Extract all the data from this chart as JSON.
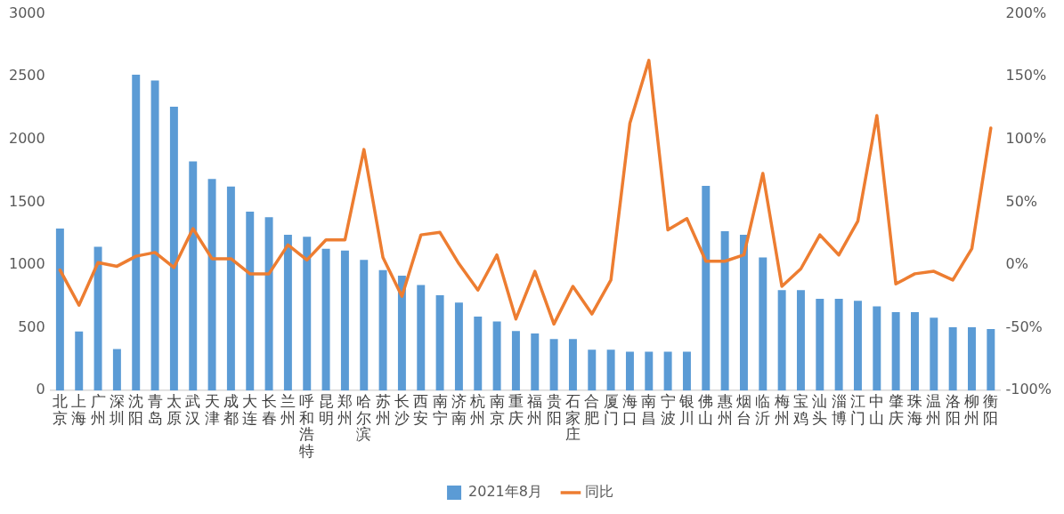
{
  "chart_data": {
    "type": "bar",
    "categories": [
      "北京",
      "上海",
      "广州",
      "深圳",
      "沈阳",
      "青岛",
      "太原",
      "武汉",
      "天津",
      "成都",
      "大连",
      "长春",
      "兰州",
      "呼和浩特",
      "昆明",
      "郑州",
      "哈尔滨",
      "苏州",
      "长沙",
      "西安",
      "南宁",
      "济南",
      "杭州",
      "南京",
      "重庆",
      "福州",
      "贵阳",
      "石家庄",
      "合肥",
      "厦门",
      "海口",
      "南昌",
      "宁波",
      "银川",
      "佛山",
      "惠州",
      "烟台",
      "临沂",
      "梅州",
      "宝鸡",
      "汕头",
      "淄博",
      "江门",
      "中山",
      "肇庆",
      "珠海",
      "温州",
      "洛阳",
      "柳州",
      "衡阳"
    ],
    "series": [
      {
        "name": "2021年8月",
        "color": "#5b9bd5",
        "values": [
          1290,
          470,
          1145,
          330,
          2515,
          2470,
          2260,
          1825,
          1685,
          1625,
          1425,
          1380,
          1240,
          1225,
          1130,
          1115,
          1040,
          960,
          915,
          840,
          760,
          700,
          590,
          550,
          475,
          455,
          410,
          410,
          325,
          325,
          310,
          310,
          310,
          310,
          1630,
          1270,
          1240,
          1060,
          800,
          800,
          730,
          730,
          715,
          670,
          625,
          625,
          580,
          505,
          505,
          490
        ]
      },
      {
        "name": "同比",
        "type": "line",
        "axis": "y2",
        "color": "#ed7d31",
        "values": [
          -4,
          -32,
          2,
          -1,
          7,
          10,
          -2,
          29,
          5,
          5,
          -7,
          -7,
          16,
          4,
          20,
          20,
          92,
          6,
          -25,
          24,
          26,
          1,
          -20,
          8,
          -43,
          -5,
          -47,
          -17,
          -39,
          -12,
          113,
          163,
          28,
          37,
          3,
          3,
          8,
          73,
          -17,
          -3,
          24,
          8,
          35,
          119,
          -15,
          -7,
          -5,
          -12,
          13,
          109
        ]
      }
    ],
    "ylim": [
      0,
      3000
    ],
    "yticks": [
      0,
      500,
      1000,
      1500,
      2000,
      2500,
      3000
    ],
    "y2lim": [
      -100,
      200
    ],
    "y2ticks": [
      {
        "value": -100,
        "label": "-100%"
      },
      {
        "value": -50,
        "label": "-50%"
      },
      {
        "value": 0,
        "label": "0%"
      },
      {
        "value": 50,
        "label": "50%"
      },
      {
        "value": 100,
        "label": "100%"
      },
      {
        "value": 150,
        "label": "150%"
      },
      {
        "value": 200,
        "label": "200%"
      }
    ],
    "grid": false,
    "legend": "bottom",
    "marker": "none",
    "line_style": "solid"
  }
}
